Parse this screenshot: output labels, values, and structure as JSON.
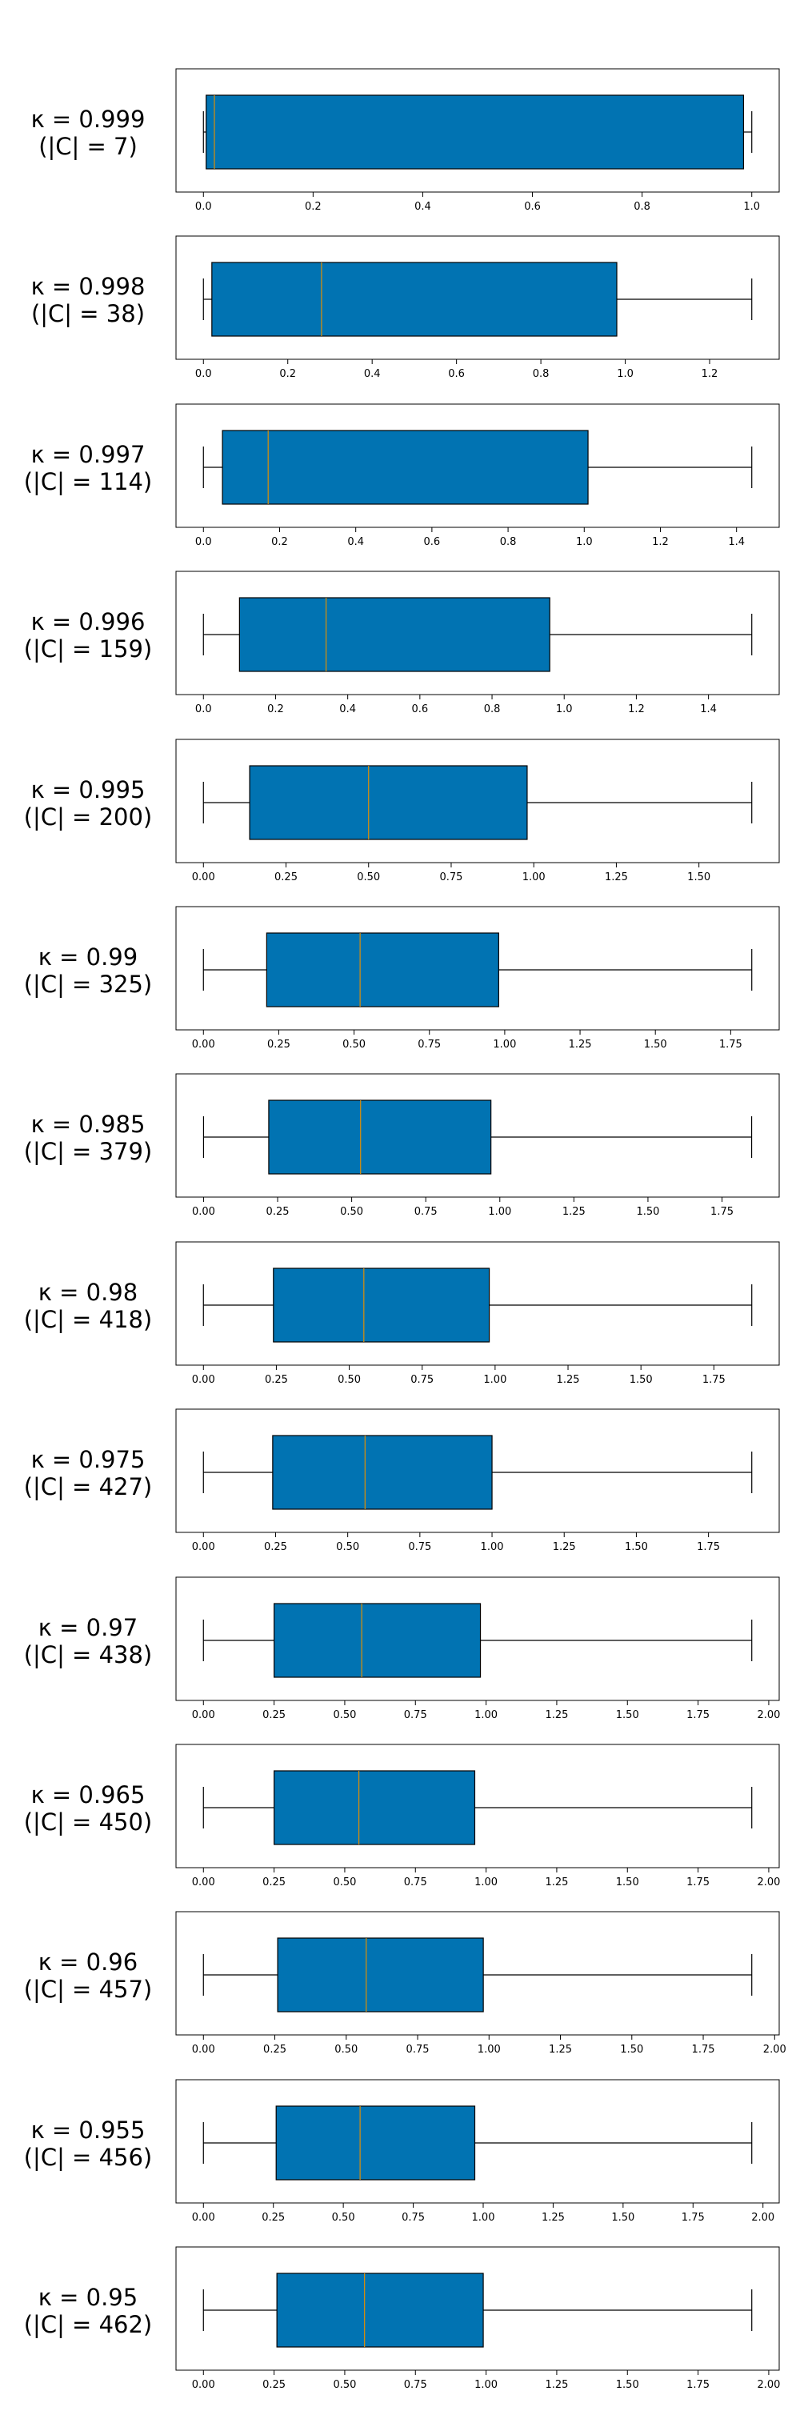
{
  "chart_data": [
    {
      "type": "boxplot",
      "kappa": "κ = 0.999",
      "count": "(|C| = 7)",
      "xlim": [
        -0.05,
        1.05
      ],
      "ticks": [
        0.0,
        0.2,
        0.4,
        0.6,
        0.8,
        1.0
      ],
      "tick_labels": [
        "0.0",
        "0.2",
        "0.4",
        "0.6",
        "0.8",
        "1.0"
      ],
      "whisker_low": 0.0,
      "q1": 0.005,
      "median": 0.02,
      "q3": 0.985,
      "whisker_high": 1.0
    },
    {
      "type": "boxplot",
      "kappa": "κ = 0.998",
      "count": "(|C| = 38)",
      "xlim": [
        -0.065,
        1.365
      ],
      "ticks": [
        0.0,
        0.2,
        0.4,
        0.6,
        0.8,
        1.0,
        1.2
      ],
      "tick_labels": [
        "0.0",
        "0.2",
        "0.4",
        "0.6",
        "0.8",
        "1.0",
        "1.2"
      ],
      "whisker_low": 0.0,
      "q1": 0.02,
      "median": 0.28,
      "q3": 0.98,
      "whisker_high": 1.3
    },
    {
      "type": "boxplot",
      "kappa": "κ = 0.997",
      "count": "(|C| = 114)",
      "xlim": [
        -0.072,
        1.512
      ],
      "ticks": [
        0.0,
        0.2,
        0.4,
        0.6,
        0.8,
        1.0,
        1.2,
        1.4
      ],
      "tick_labels": [
        "0.0",
        "0.2",
        "0.4",
        "0.6",
        "0.8",
        "1.0",
        "1.2",
        "1.4"
      ],
      "whisker_low": 0.0,
      "q1": 0.05,
      "median": 0.17,
      "q3": 1.01,
      "whisker_high": 1.44
    },
    {
      "type": "boxplot",
      "kappa": "κ = 0.996",
      "count": "(|C| = 159)",
      "xlim": [
        -0.076,
        1.596
      ],
      "ticks": [
        0.0,
        0.2,
        0.4,
        0.6,
        0.8,
        1.0,
        1.2,
        1.4
      ],
      "tick_labels": [
        "0.0",
        "0.2",
        "0.4",
        "0.6",
        "0.8",
        "1.0",
        "1.2",
        "1.4"
      ],
      "whisker_low": 0.0,
      "q1": 0.1,
      "median": 0.34,
      "q3": 0.96,
      "whisker_high": 1.52
    },
    {
      "type": "boxplot",
      "kappa": "κ = 0.995",
      "count": "(|C| = 200)",
      "xlim": [
        -0.083,
        1.743
      ],
      "ticks": [
        0.0,
        0.25,
        0.5,
        0.75,
        1.0,
        1.25,
        1.5
      ],
      "tick_labels": [
        "0.00",
        "0.25",
        "0.50",
        "0.75",
        "1.00",
        "1.25",
        "1.50"
      ],
      "whisker_low": 0.0,
      "q1": 0.14,
      "median": 0.5,
      "q3": 0.98,
      "whisker_high": 1.66
    },
    {
      "type": "boxplot",
      "kappa": "κ = 0.99",
      "count": "(|C| = 325)",
      "xlim": [
        -0.091,
        1.911
      ],
      "ticks": [
        0.0,
        0.25,
        0.5,
        0.75,
        1.0,
        1.25,
        1.5,
        1.75
      ],
      "tick_labels": [
        "0.00",
        "0.25",
        "0.50",
        "0.75",
        "1.00",
        "1.25",
        "1.50",
        "1.75"
      ],
      "whisker_low": 0.0,
      "q1": 0.21,
      "median": 0.52,
      "q3": 0.98,
      "whisker_high": 1.82
    },
    {
      "type": "boxplot",
      "kappa": "κ = 0.985",
      "count": "(|C| = 379)",
      "xlim": [
        -0.093,
        1.943
      ],
      "ticks": [
        0.0,
        0.25,
        0.5,
        0.75,
        1.0,
        1.25,
        1.5,
        1.75
      ],
      "tick_labels": [
        "0.00",
        "0.25",
        "0.50",
        "0.75",
        "1.00",
        "1.25",
        "1.50",
        "1.75"
      ],
      "whisker_low": 0.0,
      "q1": 0.22,
      "median": 0.53,
      "q3": 0.97,
      "whisker_high": 1.85
    },
    {
      "type": "boxplot",
      "kappa": "κ = 0.98",
      "count": "(|C| = 418)",
      "xlim": [
        -0.094,
        1.974
      ],
      "ticks": [
        0.0,
        0.25,
        0.5,
        0.75,
        1.0,
        1.25,
        1.5,
        1.75
      ],
      "tick_labels": [
        "0.00",
        "0.25",
        "0.50",
        "0.75",
        "1.00",
        "1.25",
        "1.50",
        "1.75"
      ],
      "whisker_low": 0.0,
      "q1": 0.24,
      "median": 0.55,
      "q3": 0.98,
      "whisker_high": 1.88
    },
    {
      "type": "boxplot",
      "kappa": "κ = 0.975",
      "count": "(|C| = 427)",
      "xlim": [
        -0.095,
        1.995
      ],
      "ticks": [
        0.0,
        0.25,
        0.5,
        0.75,
        1.0,
        1.25,
        1.5,
        1.75
      ],
      "tick_labels": [
        "0.00",
        "0.25",
        "0.50",
        "0.75",
        "1.00",
        "1.25",
        "1.50",
        "1.75"
      ],
      "whisker_low": 0.0,
      "q1": 0.24,
      "median": 0.56,
      "q3": 1.0,
      "whisker_high": 1.9
    },
    {
      "type": "boxplot",
      "kappa": "κ = 0.97",
      "count": "(|C| = 438)",
      "xlim": [
        -0.097,
        2.037
      ],
      "ticks": [
        0.0,
        0.25,
        0.5,
        0.75,
        1.0,
        1.25,
        1.5,
        1.75,
        2.0
      ],
      "tick_labels": [
        "0.00",
        "0.25",
        "0.50",
        "0.75",
        "1.00",
        "1.25",
        "1.50",
        "1.75",
        "2.00"
      ],
      "whisker_low": 0.0,
      "q1": 0.25,
      "median": 0.56,
      "q3": 0.98,
      "whisker_high": 1.94
    },
    {
      "type": "boxplot",
      "kappa": "κ = 0.965",
      "count": "(|C| = 450)",
      "xlim": [
        -0.097,
        2.037
      ],
      "ticks": [
        0.0,
        0.25,
        0.5,
        0.75,
        1.0,
        1.25,
        1.5,
        1.75,
        2.0
      ],
      "tick_labels": [
        "0.00",
        "0.25",
        "0.50",
        "0.75",
        "1.00",
        "1.25",
        "1.50",
        "1.75",
        "2.00"
      ],
      "whisker_low": 0.0,
      "q1": 0.25,
      "median": 0.55,
      "q3": 0.96,
      "whisker_high": 1.94
    },
    {
      "type": "boxplot",
      "kappa": "κ = 0.96",
      "count": "(|C| = 457)",
      "xlim": [
        -0.096,
        2.016
      ],
      "ticks": [
        0.0,
        0.25,
        0.5,
        0.75,
        1.0,
        1.25,
        1.5,
        1.75,
        2.0
      ],
      "tick_labels": [
        "0.00",
        "0.25",
        "0.50",
        "0.75",
        "1.00",
        "1.25",
        "1.50",
        "1.75",
        "2.00"
      ],
      "whisker_low": 0.0,
      "q1": 0.26,
      "median": 0.57,
      "q3": 0.98,
      "whisker_high": 1.92
    },
    {
      "type": "boxplot",
      "kappa": "κ = 0.955",
      "count": "(|C| = 456)",
      "xlim": [
        -0.098,
        2.058
      ],
      "ticks": [
        0.0,
        0.25,
        0.5,
        0.75,
        1.0,
        1.25,
        1.5,
        1.75,
        2.0
      ],
      "tick_labels": [
        "0.00",
        "0.25",
        "0.50",
        "0.75",
        "1.00",
        "1.25",
        "1.50",
        "1.75",
        "2.00"
      ],
      "whisker_low": 0.0,
      "q1": 0.26,
      "median": 0.56,
      "q3": 0.97,
      "whisker_high": 1.96
    },
    {
      "type": "boxplot",
      "kappa": "κ = 0.95",
      "count": "(|C| = 462)",
      "xlim": [
        -0.097,
        2.037
      ],
      "ticks": [
        0.0,
        0.25,
        0.5,
        0.75,
        1.0,
        1.25,
        1.5,
        1.75,
        2.0
      ],
      "tick_labels": [
        "0.00",
        "0.25",
        "0.50",
        "0.75",
        "1.00",
        "1.25",
        "1.50",
        "1.75",
        "2.00"
      ],
      "whisker_low": 0.0,
      "q1": 0.26,
      "median": 0.57,
      "q3": 0.99,
      "whisker_high": 1.94
    }
  ],
  "colors": {
    "box_fill": "#0173b2",
    "median": "#de8f05",
    "line": "#000000",
    "frame": "#000000"
  }
}
